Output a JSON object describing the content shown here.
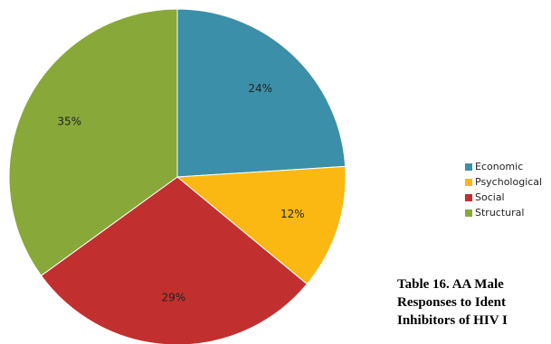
{
  "chart_data": {
    "type": "pie",
    "title": "",
    "categories": [
      "Economic",
      "Psychological",
      "Social",
      "Structural"
    ],
    "values": [
      24,
      12,
      29,
      35
    ],
    "value_labels": [
      "24%",
      "12%",
      "29%",
      "35%"
    ],
    "colors": [
      "#3b8fa8",
      "#fbb812",
      "#c1302f",
      "#88a83a"
    ],
    "start_angle_deg": 0,
    "direction": "clockwise",
    "legend_position": "right"
  },
  "caption": {
    "line1": "Table 16. AA Male",
    "line2": "Responses to Ident",
    "line3": "Inhibitors of HIV I"
  }
}
